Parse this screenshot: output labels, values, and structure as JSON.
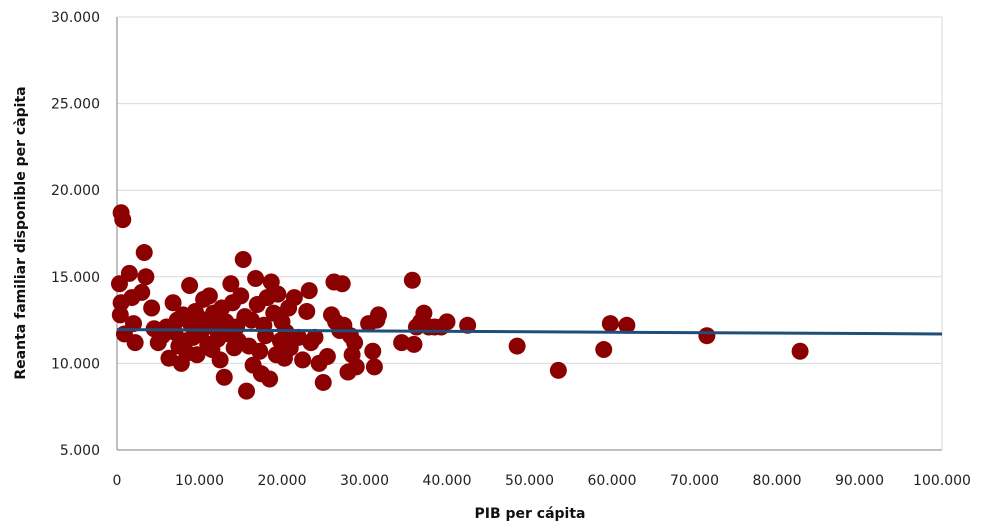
{
  "chart_data": {
    "type": "scatter",
    "title": "",
    "xlabel": "PIB per cápita",
    "ylabel": "Reanta familiar disponible per càpita",
    "xlim": [
      0,
      100000
    ],
    "ylim": [
      5000,
      30000
    ],
    "x_ticks": [
      "0",
      "10.000",
      "20.000",
      "30.000",
      "40.000",
      "50.000",
      "60.000",
      "70.000",
      "80.000",
      "90.000",
      "100.000"
    ],
    "y_ticks": [
      "5.000",
      "10.000",
      "15.000",
      "20.000",
      "25.000",
      "30.000"
    ],
    "grid": "horizontal",
    "legend": "none",
    "colors": {
      "points": "#8B0000",
      "trend": "#1F4E79",
      "grid": "#D9D9D9",
      "axis": "#808080"
    },
    "trendline": {
      "x": [
        0,
        100000
      ],
      "y": [
        11950,
        11700
      ]
    },
    "points": [
      [
        500,
        18700
      ],
      [
        700,
        18300
      ],
      [
        300,
        14600
      ],
      [
        500,
        13500
      ],
      [
        400,
        12800
      ],
      [
        900,
        11700
      ],
      [
        1500,
        15200
      ],
      [
        1800,
        13800
      ],
      [
        2000,
        12300
      ],
      [
        2200,
        11200
      ],
      [
        3000,
        14100
      ],
      [
        3300,
        16400
      ],
      [
        3500,
        15000
      ],
      [
        4200,
        13200
      ],
      [
        4500,
        12000
      ],
      [
        5000,
        11200
      ],
      [
        5500,
        11600
      ],
      [
        6000,
        12100
      ],
      [
        6300,
        10300
      ],
      [
        6800,
        13500
      ],
      [
        7000,
        11800
      ],
      [
        7300,
        12500
      ],
      [
        7500,
        11000
      ],
      [
        7800,
        10000
      ],
      [
        8000,
        12800
      ],
      [
        8200,
        11300
      ],
      [
        8500,
        10600
      ],
      [
        8800,
        14500
      ],
      [
        9000,
        12200
      ],
      [
        9200,
        11500
      ],
      [
        9500,
        13000
      ],
      [
        9700,
        10500
      ],
      [
        10000,
        12600
      ],
      [
        10200,
        11800
      ],
      [
        10500,
        13700
      ],
      [
        10700,
        12300
      ],
      [
        11000,
        11100
      ],
      [
        11200,
        13900
      ],
      [
        11500,
        10800
      ],
      [
        11700,
        12900
      ],
      [
        12000,
        12000
      ],
      [
        12200,
        11400
      ],
      [
        12500,
        10200
      ],
      [
        12700,
        13200
      ],
      [
        13000,
        9200
      ],
      [
        13200,
        12400
      ],
      [
        13500,
        11700
      ],
      [
        13800,
        14600
      ],
      [
        14000,
        13500
      ],
      [
        14200,
        10900
      ],
      [
        14500,
        12100
      ],
      [
        14700,
        11300
      ],
      [
        15000,
        13900
      ],
      [
        15300,
        16000
      ],
      [
        15500,
        12700
      ],
      [
        15700,
        8400
      ],
      [
        16000,
        11000
      ],
      [
        16300,
        12500
      ],
      [
        16500,
        9900
      ],
      [
        16800,
        14900
      ],
      [
        17000,
        13400
      ],
      [
        17300,
        10700
      ],
      [
        17500,
        9400
      ],
      [
        17800,
        12200
      ],
      [
        18000,
        11600
      ],
      [
        18200,
        13800
      ],
      [
        18500,
        9100
      ],
      [
        18700,
        14700
      ],
      [
        19000,
        12900
      ],
      [
        19300,
        10500
      ],
      [
        19500,
        14000
      ],
      [
        19800,
        11300
      ],
      [
        20000,
        12400
      ],
      [
        20300,
        10300
      ],
      [
        20500,
        11800
      ],
      [
        20800,
        13200
      ],
      [
        21000,
        10900
      ],
      [
        21500,
        13800
      ],
      [
        22000,
        11500
      ],
      [
        22500,
        10200
      ],
      [
        23000,
        13000
      ],
      [
        23300,
        14200
      ],
      [
        23500,
        11200
      ],
      [
        24000,
        11500
      ],
      [
        24500,
        10000
      ],
      [
        25000,
        8900
      ],
      [
        25500,
        10400
      ],
      [
        26000,
        12800
      ],
      [
        26300,
        14700
      ],
      [
        26500,
        12400
      ],
      [
        27000,
        11900
      ],
      [
        27300,
        14600
      ],
      [
        27500,
        12200
      ],
      [
        28000,
        9500
      ],
      [
        28300,
        11600
      ],
      [
        28500,
        10500
      ],
      [
        28800,
        11200
      ],
      [
        29000,
        9800
      ],
      [
        30500,
        12300
      ],
      [
        31000,
        10700
      ],
      [
        31200,
        9800
      ],
      [
        31500,
        12500
      ],
      [
        31700,
        12800
      ],
      [
        34500,
        11200
      ],
      [
        35800,
        14800
      ],
      [
        36000,
        11100
      ],
      [
        36300,
        12100
      ],
      [
        36800,
        12400
      ],
      [
        37200,
        12900
      ],
      [
        37800,
        12100
      ],
      [
        38500,
        12100
      ],
      [
        39300,
        12100
      ],
      [
        40000,
        12400
      ],
      [
        42500,
        12200
      ],
      [
        48500,
        11000
      ],
      [
        53500,
        9600
      ],
      [
        59000,
        10800
      ],
      [
        59800,
        12300
      ],
      [
        61800,
        12200
      ],
      [
        71500,
        11600
      ],
      [
        82800,
        10700
      ]
    ]
  }
}
